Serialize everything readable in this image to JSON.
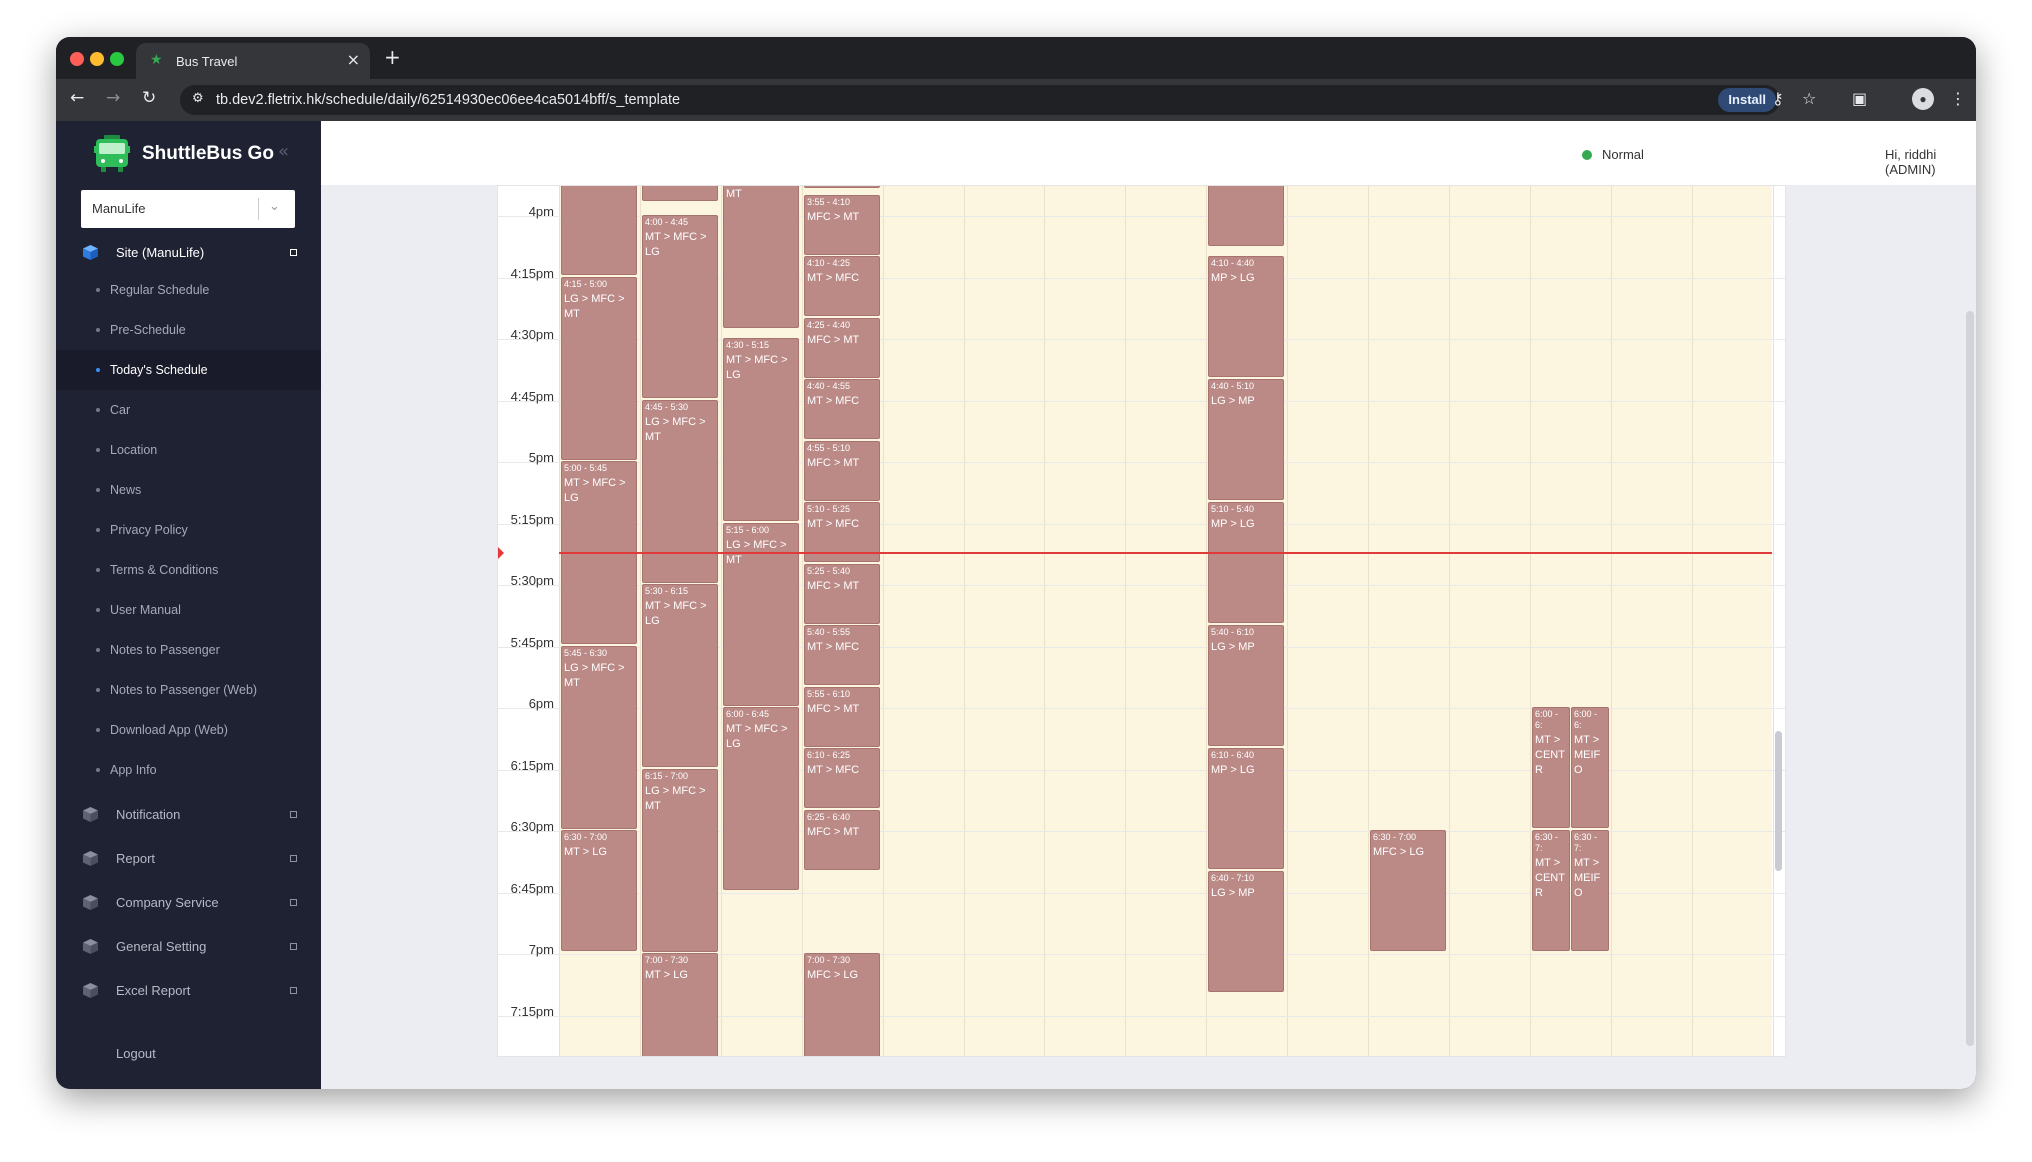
{
  "browser": {
    "tab_title": "Bus Travel",
    "url": "tb.dev2.fletrix.hk/schedule/daily/62514930ec06ee4ca5014bff/s_template",
    "install_label": "Install",
    "icons": [
      "back-icon",
      "forward-icon",
      "reload-icon",
      "site-settings-icon",
      "password-key-icon",
      "bookmark-star-icon",
      "side-panel-icon",
      "profile-avatar-icon",
      "more-menu-icon"
    ]
  },
  "sidebar": {
    "brand": "ShuttleBus Go",
    "site_select": "ManuLife",
    "section_site": "Site (ManuLife)",
    "items": [
      {
        "label": "Regular Schedule"
      },
      {
        "label": "Pre-Schedule"
      },
      {
        "label": "Today's Schedule"
      },
      {
        "label": "Car"
      },
      {
        "label": "Location"
      },
      {
        "label": "News"
      },
      {
        "label": "Privacy Policy"
      },
      {
        "label": "Terms & Conditions"
      },
      {
        "label": "User Manual"
      },
      {
        "label": "Notes to Passenger"
      },
      {
        "label": "Notes to Passenger (Web)"
      },
      {
        "label": "Download App (Web)"
      },
      {
        "label": "App Info"
      }
    ],
    "active_item": "Today's Schedule",
    "sections": [
      {
        "label": "Notification"
      },
      {
        "label": "Report"
      },
      {
        "label": "Company Service"
      },
      {
        "label": "General Setting"
      },
      {
        "label": "Excel Report"
      }
    ],
    "logout": "Logout"
  },
  "header": {
    "status": "Normal",
    "status_color": "#34a853",
    "greeting": "Hi, riddhi (ADMIN)"
  },
  "calendar": {
    "time_labels": [
      "4pm",
      "4:15pm",
      "4:30pm",
      "4:45pm",
      "5pm",
      "5:15pm",
      "5:30pm",
      "5:45pm",
      "6pm",
      "6:15pm",
      "6:30pm",
      "6:45pm",
      "7pm",
      "7:15pm"
    ],
    "columns": 15,
    "event_color": "#bb8a87",
    "now_line_color": "#e03a3a",
    "events": [
      {
        "col": 0,
        "time": "",
        "route": "",
        "start": "3:50",
        "end": "4:15"
      },
      {
        "col": 0,
        "time": "4:15 - 5:00",
        "route": "LG > MFC > MT",
        "start": "4:15",
        "end": "5:00"
      },
      {
        "col": 0,
        "time": "5:00 - 5:45",
        "route": "MT > MFC > LG",
        "start": "5:00",
        "end": "5:45"
      },
      {
        "col": 0,
        "time": "5:45 - 6:30",
        "route": "LG > MFC > MT",
        "start": "5:45",
        "end": "6:30"
      },
      {
        "col": 0,
        "time": "6:30 - 7:00",
        "route": "MT > LG",
        "start": "6:30",
        "end": "7:00"
      },
      {
        "col": 1,
        "time": "",
        "route": "",
        "start": "3:50",
        "end": "3:57"
      },
      {
        "col": 1,
        "time": "4:00 - 4:45",
        "route": "MT > MFC > LG",
        "start": "4:00",
        "end": "4:45"
      },
      {
        "col": 1,
        "time": "4:45 - 5:30",
        "route": "LG > MFC > MT",
        "start": "4:45",
        "end": "5:30"
      },
      {
        "col": 1,
        "time": "5:30 - 6:15",
        "route": "MT > MFC > LG",
        "start": "5:30",
        "end": "6:15"
      },
      {
        "col": 1,
        "time": "6:15 - 7:00",
        "route": "LG > MFC > MT",
        "start": "6:15",
        "end": "7:00"
      },
      {
        "col": 1,
        "time": "7:00 - 7:30",
        "route": "MT > LG",
        "start": "7:00",
        "end": "7:30"
      },
      {
        "col": 2,
        "time": "",
        "route": "MT",
        "start": "3:50",
        "end": "4:28"
      },
      {
        "col": 2,
        "time": "4:30 - 5:15",
        "route": "MT > MFC > LG",
        "start": "4:30",
        "end": "5:15"
      },
      {
        "col": 2,
        "time": "5:15 - 6:00",
        "route": "LG > MFC > MT",
        "start": "5:15",
        "end": "6:00"
      },
      {
        "col": 2,
        "time": "6:00 - 6:45",
        "route": "MT > MFC > LG",
        "start": "6:00",
        "end": "6:45"
      },
      {
        "col": 3,
        "time": "",
        "route": "",
        "start": "3:50",
        "end": "3:52"
      },
      {
        "col": 3,
        "time": "3:55 - 4:10",
        "route": "MFC > MT",
        "start": "3:55",
        "end": "4:10"
      },
      {
        "col": 3,
        "time": "4:10 - 4:25",
        "route": "MT > MFC",
        "start": "4:10",
        "end": "4:25"
      },
      {
        "col": 3,
        "time": "4:25 - 4:40",
        "route": "MFC > MT",
        "start": "4:25",
        "end": "4:40"
      },
      {
        "col": 3,
        "time": "4:40 - 4:55",
        "route": "MT > MFC",
        "start": "4:40",
        "end": "4:55"
      },
      {
        "col": 3,
        "time": "4:55 - 5:10",
        "route": "MFC > MT",
        "start": "4:55",
        "end": "5:10"
      },
      {
        "col": 3,
        "time": "5:10 - 5:25",
        "route": "MT > MFC",
        "start": "5:10",
        "end": "5:25"
      },
      {
        "col": 3,
        "time": "5:25 - 5:40",
        "route": "MFC > MT",
        "start": "5:25",
        "end": "5:40"
      },
      {
        "col": 3,
        "time": "5:40 - 5:55",
        "route": "MT > MFC",
        "start": "5:40",
        "end": "5:55"
      },
      {
        "col": 3,
        "time": "5:55 - 6:10",
        "route": "MFC > MT",
        "start": "5:55",
        "end": "6:10"
      },
      {
        "col": 3,
        "time": "6:10 - 6:25",
        "route": "MT > MFC",
        "start": "6:10",
        "end": "6:25"
      },
      {
        "col": 3,
        "time": "6:25 - 6:40",
        "route": "MFC > MT",
        "start": "6:25",
        "end": "6:40"
      },
      {
        "col": 3,
        "time": "7:00 - 7:30",
        "route": "MFC > LG",
        "start": "7:00",
        "end": "7:30"
      },
      {
        "col": 8,
        "time": "",
        "route": "",
        "start": "3:50",
        "end": "4:08"
      },
      {
        "col": 8,
        "time": "4:10 - 4:40",
        "route": "MP > LG",
        "start": "4:10",
        "end": "4:40"
      },
      {
        "col": 8,
        "time": "4:40 - 5:10",
        "route": "LG > MP",
        "start": "4:40",
        "end": "5:10"
      },
      {
        "col": 8,
        "time": "5:10 - 5:40",
        "route": "MP > LG",
        "start": "5:10",
        "end": "5:40"
      },
      {
        "col": 8,
        "time": "5:40 - 6:10",
        "route": "LG > MP",
        "start": "5:40",
        "end": "6:10"
      },
      {
        "col": 8,
        "time": "6:10 - 6:40",
        "route": "MP > LG",
        "start": "6:10",
        "end": "6:40"
      },
      {
        "col": 8,
        "time": "6:40 - 7:10",
        "route": "LG > MP",
        "start": "6:40",
        "end": "7:10"
      },
      {
        "col": 10,
        "time": "6:30 - 7:00",
        "route": "MFC > LG",
        "start": "6:30",
        "end": "7:00"
      },
      {
        "col": 12,
        "half": 0,
        "time": "6:00 - 6:",
        "route": "MT > CENTR",
        "start": "6:00",
        "end": "6:30"
      },
      {
        "col": 12,
        "half": 1,
        "time": "6:00 - 6:",
        "route": "MT > MEIFO",
        "start": "6:00",
        "end": "6:30"
      },
      {
        "col": 12,
        "half": 0,
        "time": "6:30 - 7:",
        "route": "MT > CENTR",
        "start": "6:30",
        "end": "7:00"
      },
      {
        "col": 12,
        "half": 1,
        "time": "6:30 - 7:",
        "route": "MT > MEIFO",
        "start": "6:30",
        "end": "7:00"
      }
    ]
  }
}
